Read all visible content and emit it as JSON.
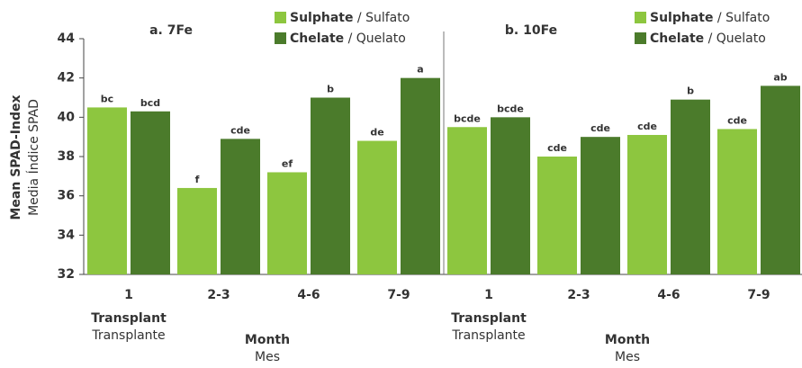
{
  "chart_data": [
    {
      "type": "bar",
      "title": "a. 7Fe",
      "y_label": "Mean SPAD-Index",
      "y_label_translation": "Media Índice SPAD",
      "x_label": "Month",
      "x_label_translation": "Mes",
      "annotation": "Transplant",
      "annotation_translation": "Transplante",
      "categories": [
        "1",
        "2-3",
        "4-6",
        "7-9"
      ],
      "series": [
        {
          "name": "Sulphate / Sulfato",
          "color": "#8dc63f",
          "values": [
            40.5,
            36.4,
            37.2,
            38.8
          ],
          "value_labels": [
            "bc",
            "f",
            "ef",
            "de"
          ]
        },
        {
          "name": "Chelate / Quelato",
          "color": "#4b7b2b",
          "values": [
            40.3,
            38.9,
            41.0,
            42.0
          ],
          "value_labels": [
            "bcd",
            "cde",
            "b",
            "a"
          ]
        }
      ],
      "ylim": [
        32,
        44
      ],
      "yticks": [
        32,
        34,
        36,
        38,
        40,
        42,
        44
      ]
    },
    {
      "type": "bar",
      "title": "b. 10Fe",
      "x_label": "Month",
      "x_label_translation": "Mes",
      "annotation": "Transplant",
      "annotation_translation": "Transplante",
      "categories": [
        "1",
        "2-3",
        "4-6",
        "7-9"
      ],
      "series": [
        {
          "name": "Sulphate / Sulfato",
          "color": "#8dc63f",
          "values": [
            39.5,
            38.0,
            39.1,
            39.4
          ],
          "value_labels": [
            "bcde",
            "cde",
            "cde",
            "cde"
          ]
        },
        {
          "name": "Chelate / Quelato",
          "color": "#4b7b2b",
          "values": [
            40.0,
            39.0,
            40.9,
            41.6
          ],
          "value_labels": [
            "bcde",
            "cde",
            "b",
            "ab"
          ]
        }
      ],
      "ylim": [
        32,
        44
      ]
    }
  ]
}
